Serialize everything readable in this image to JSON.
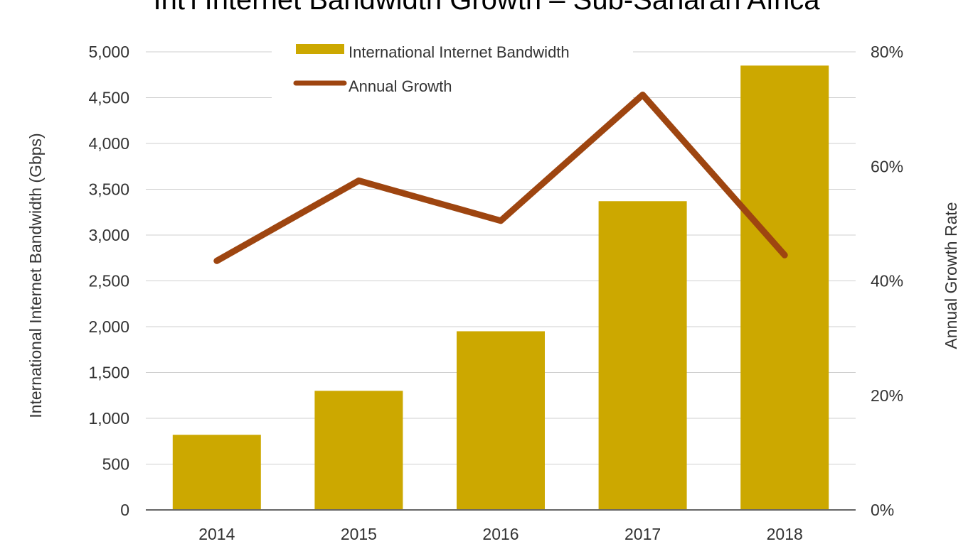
{
  "title": "Int'l Internet Bandwidth Growth – Sub-Saharan Africa",
  "chart_data": {
    "type": "bar",
    "categories": [
      "2014",
      "2015",
      "2016",
      "2017",
      "2018"
    ],
    "series": [
      {
        "name": "International Internet Bandwidth",
        "type": "bar",
        "axis": "left",
        "values": [
          820,
          1300,
          1950,
          3370,
          4850
        ],
        "color": "#CCA800"
      },
      {
        "name": "Annual Growth",
        "type": "line",
        "axis": "right",
        "values": [
          43.5,
          57.5,
          50.5,
          72.5,
          44.5
        ],
        "color": "#9E4510"
      }
    ],
    "ylabel": "International Internet Bandwidth (Gbps)",
    "y2label": "Annual Growth Rate",
    "ylim": [
      0,
      5000
    ],
    "y2lim": [
      0,
      80
    ],
    "yticks": [
      "0",
      "500",
      "1,000",
      "1,500",
      "2,000",
      "2,500",
      "3,000",
      "3,500",
      "4,000",
      "4,500",
      "5,000"
    ],
    "y2ticks": [
      "0%",
      "20%",
      "40%",
      "60%",
      "80%"
    ],
    "grid": true,
    "legend": "top-center"
  }
}
